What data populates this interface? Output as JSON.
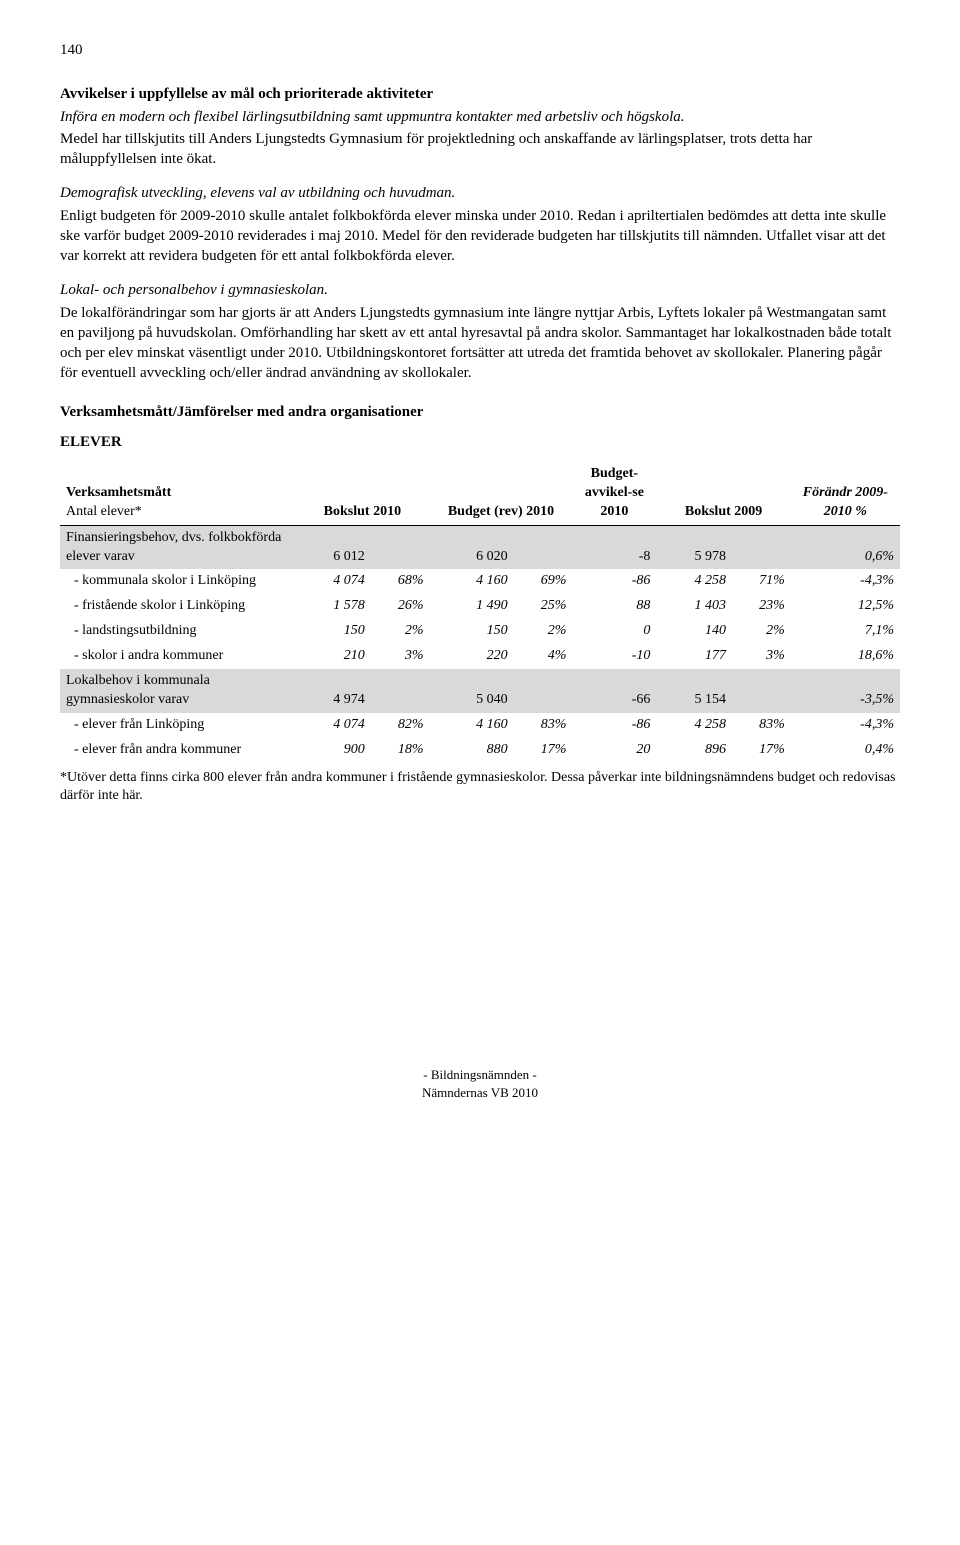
{
  "page_number": "140",
  "heading1": "Avvikelser i uppfyllelse av mål och prioriterade aktiviteter",
  "para1_italic": "Införa en modern och flexibel lärlingsutbildning samt uppmuntra kontakter med arbetsliv och högskola.",
  "para1b": "Medel har tillskjutits till Anders Ljungstedts Gymnasium för projektledning och anskaffande av lärlingsplatser, trots detta har måluppfyllelsen inte ökat.",
  "para2_italic": "Demografisk utveckling, elevens val av utbildning och huvudman.",
  "para2b": "Enligt budgeten för 2009-2010 skulle antalet folkbokförda elever minska under 2010. Redan i apriltertialen bedömdes att detta inte skulle ske varför budget 2009-2010 reviderades i maj 2010. Medel för den reviderade budgeten har tillskjutits till nämnden. Utfallet visar att det var korrekt att revidera budgeten för ett antal folkbokförda elever.",
  "para3_italic": "Lokal- och personalbehov i gymnasieskolan.",
  "para3b": "De lokalförändringar som har gjorts är att Anders Ljungstedts gymnasium inte längre nyttjar Arbis, Lyftets lokaler på Westmangatan samt en paviljong på huvudskolan. Omförhandling har skett av ett antal hyresavtal på andra skolor. Sammantaget har lokalkostnaden både totalt och per elev minskat väsentligt under 2010. Utbildningskontoret fortsätter att utreda det framtida behovet av skollokaler. Planering pågår för eventuell avveckling och/eller ändrad användning av skollokaler.",
  "section_heading": "Verksamhetsmått/Jämförelser med andra organisationer",
  "sub_heading": "ELEVER",
  "table": {
    "col_widths": [
      "28%",
      "9%",
      "7%",
      "10%",
      "7%",
      "10%",
      "9%",
      "7%",
      "13%"
    ],
    "header": {
      "c0a": "Verksamhetsmått",
      "c0b": "Antal elever*",
      "c1": "Bokslut 2010",
      "c2": "Budget (rev) 2010",
      "c3": "Budget-avvikel-se 2010",
      "c4": "Bokslut 2009",
      "c5": "Förändr 2009-2010 %"
    },
    "rows": [
      {
        "shaded": true,
        "label": "Finansieringsbehov, dvs. folkbokförda elever varav",
        "indent": false,
        "v": [
          "6 012",
          "",
          "6 020",
          "",
          "-8",
          "5 978",
          "",
          "0,6%"
        ],
        "italic_last": true
      },
      {
        "shaded": false,
        "label": "kommunala skolor i Linköping",
        "indent": true,
        "v": [
          "4 074",
          "68%",
          "4 160",
          "69%",
          "-86",
          "4 258",
          "71%",
          "-4,3%"
        ],
        "italic_all": true
      },
      {
        "shaded": false,
        "label": "fristående skolor i Linköping",
        "indent": true,
        "v": [
          "1 578",
          "26%",
          "1 490",
          "25%",
          "88",
          "1 403",
          "23%",
          "12,5%"
        ],
        "italic_all": true
      },
      {
        "shaded": false,
        "label": "landstingsutbildning",
        "indent": true,
        "v": [
          "150",
          "2%",
          "150",
          "2%",
          "0",
          "140",
          "2%",
          "7,1%"
        ],
        "italic_all": true
      },
      {
        "shaded": false,
        "label": "skolor i andra kommuner",
        "indent": true,
        "v": [
          "210",
          "3%",
          "220",
          "4%",
          "-10",
          "177",
          "3%",
          "18,6%"
        ],
        "italic_all": true
      },
      {
        "shaded": true,
        "label": "Lokalbehov i kommunala gymnasieskolor varav",
        "indent": false,
        "v": [
          "4 974",
          "",
          "5 040",
          "",
          "-66",
          "5 154",
          "",
          "-3,5%"
        ],
        "italic_last": true
      },
      {
        "shaded": false,
        "label": "elever från Linköping",
        "indent": true,
        "v": [
          "4 074",
          "82%",
          "4 160",
          "83%",
          "-86",
          "4 258",
          "83%",
          "-4,3%"
        ],
        "italic_all": true
      },
      {
        "shaded": false,
        "label": "elever från andra kommuner",
        "indent": true,
        "v": [
          "900",
          "18%",
          "880",
          "17%",
          "20",
          "896",
          "17%",
          "0,4%"
        ],
        "italic_all": true
      }
    ]
  },
  "footnote": "*Utöver detta finns cirka 800 elever från andra kommuner i fristående gymnasieskolor. Dessa påverkar inte bildningsnämndens budget och redovisas därför inte här.",
  "footer_line1": "- Bildningsnämnden -",
  "footer_line2": "Nämndernas VB 2010",
  "colors": {
    "shaded_bg": "#d9d9d9",
    "text": "#000000",
    "bg": "#ffffff"
  }
}
